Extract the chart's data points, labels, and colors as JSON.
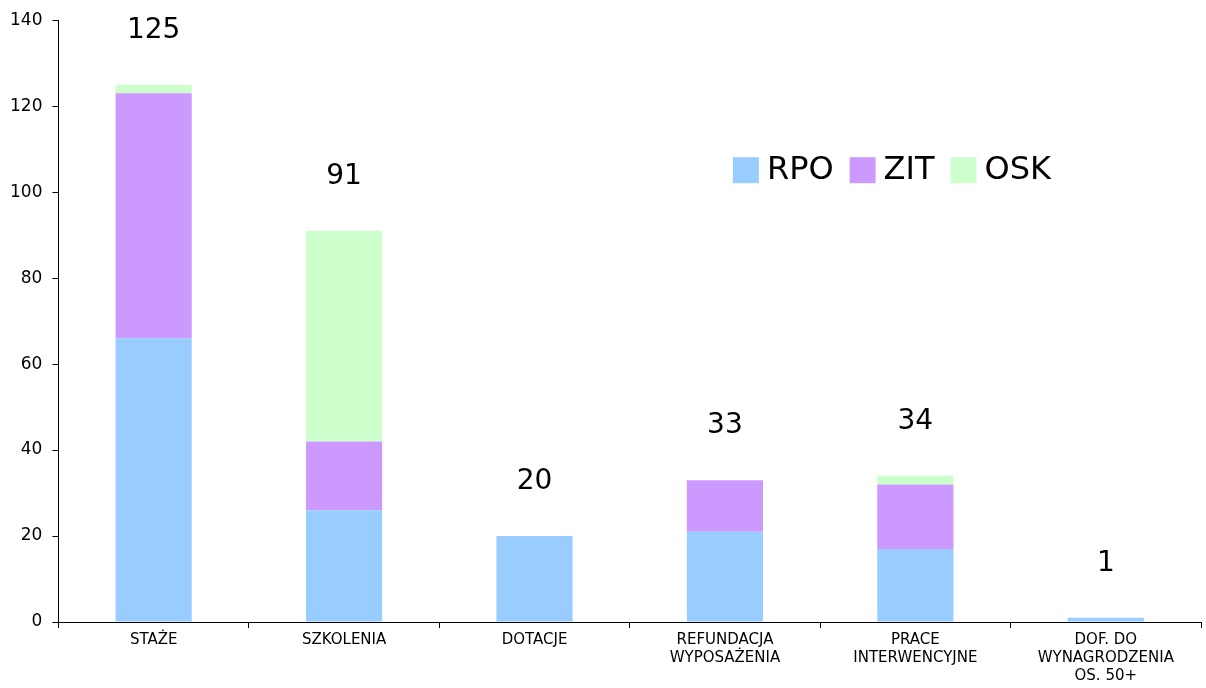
{
  "chart_data": {
    "type": "bar",
    "stacked": true,
    "categories": [
      "STAŻE",
      "SZKOLENIA",
      "DOTACJE",
      "REFUNDACJA WYPOSAŻENIA",
      "PRACE INTERWENCYJNE",
      "DOF. DO WYNAGRODZENIA OS. 50+"
    ],
    "series": [
      {
        "name": "RPO",
        "color": "#99ccff",
        "values": [
          66,
          26,
          20,
          21,
          17,
          1
        ]
      },
      {
        "name": "ZIT",
        "color": "#cc99ff",
        "values": [
          57,
          16,
          0,
          12,
          15,
          0
        ]
      },
      {
        "name": "OSK",
        "color": "#ccffcc",
        "values": [
          2,
          49,
          0,
          0,
          2,
          0
        ]
      }
    ],
    "totals": [
      "125",
      "91",
      "20",
      "33",
      "34",
      "1"
    ],
    "ylim": [
      0,
      140
    ],
    "yticks": [
      0,
      20,
      40,
      60,
      80,
      100,
      120,
      140
    ],
    "grid": false,
    "legend": "top right"
  }
}
